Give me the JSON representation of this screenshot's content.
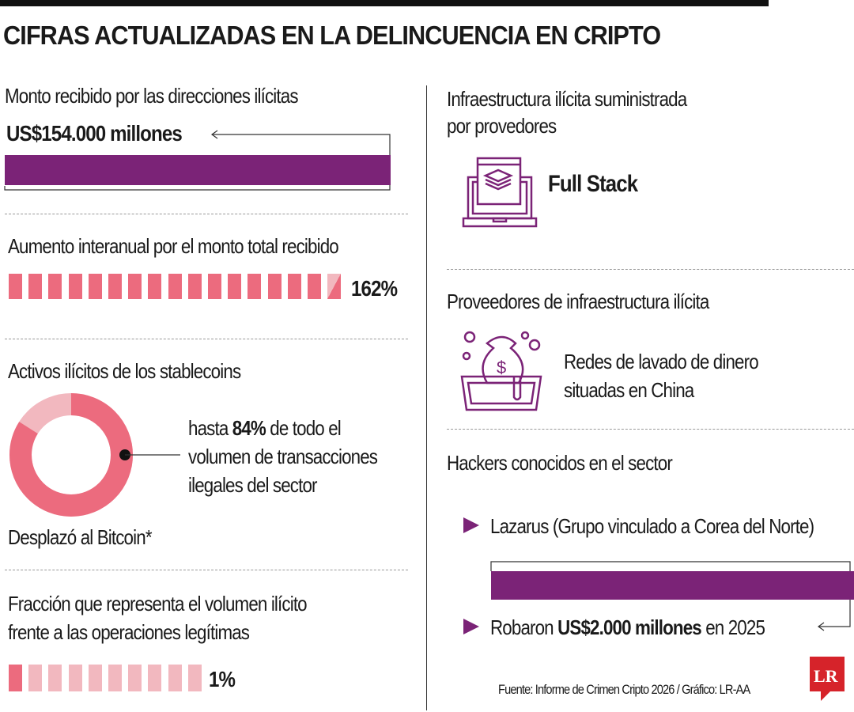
{
  "title": "CIFRAS ACTUALIZADAS EN LA DELINCUENCIA EN CRIPTO",
  "colors": {
    "purple": "#7b2377",
    "pink": "#ec6b7e",
    "light_pink": "#f2b8bf"
  },
  "left": {
    "amount": {
      "label": "Monto recibido por las direcciones ilícitas",
      "value": "US$154.000 millones"
    },
    "increase": {
      "label": "Aumento interanual por el monto total recibido",
      "value": "162%",
      "percent": 162
    },
    "stablecoins": {
      "label": "Activos ilícitos de los stablecoins",
      "share_percent": 84,
      "text_pre": "hasta ",
      "text_bold": "84%",
      "text_post": " de todo el",
      "line2": "volumen de transacciones",
      "line3": "ilegales del sector",
      "footnote": "Desplazó al Bitcoin*"
    },
    "fraction": {
      "label_line1": "Fracción que representa el volumen ilícito",
      "label_line2": "frente a las operaciones legítimas",
      "value": "1%",
      "percent": 1
    }
  },
  "right": {
    "infra": {
      "label_line1": "Infraestructura ilícita suministrada",
      "label_line2": "por provedores",
      "value": "Full Stack",
      "icon": "laptop-layers-icon"
    },
    "providers": {
      "label": "Proveedores de infraestructura ilícita",
      "line1": "Redes de lavado de dinero",
      "line2": "situadas en China",
      "icon": "money-laundering-icon"
    },
    "hackers": {
      "label": "Hackers conocidos en el sector",
      "item1": "Lazarus (Grupo vinculado a Corea del Norte)",
      "item2_pre": "Robaron ",
      "item2_bold": "US$2.000 millones",
      "item2_post": " en 2025"
    }
  },
  "source": "Fuente: Informe de Crimen Cripto 2026 / Gráfico: LR-AA",
  "logo": "LR"
}
